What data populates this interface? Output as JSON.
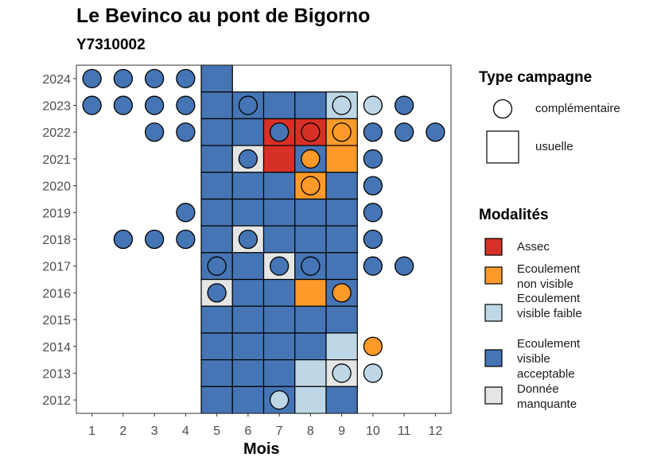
{
  "chart_data": {
    "type": "heatmap",
    "title": "Le Bevinco au pont de Bigorno",
    "subtitle": "Y7310002",
    "xlabel": "Mois",
    "ylabel": "",
    "x_ticks": [
      "1",
      "2",
      "3",
      "4",
      "5",
      "6",
      "7",
      "8",
      "9",
      "10",
      "11",
      "12"
    ],
    "y_ticks": [
      "2012",
      "2013",
      "2014",
      "2015",
      "2016",
      "2017",
      "2018",
      "2019",
      "2020",
      "2021",
      "2022",
      "2023",
      "2024"
    ],
    "legend_shape_title": "Type campagne",
    "legend_shapes": [
      {
        "shape": "circle",
        "label": "complémentaire"
      },
      {
        "shape": "square",
        "label": "usuelle"
      }
    ],
    "legend_fill_title": "Modalités",
    "categories": [
      {
        "key": "A",
        "label": "Assec",
        "color": "#d73027"
      },
      {
        "key": "N",
        "label": "Ecoulement non visible",
        "color": "#fd9a2a"
      },
      {
        "key": "F",
        "label": "Ecoulement visible faible",
        "color": "#bed7e6"
      },
      {
        "key": "V",
        "label": "Ecoulement visible acceptable",
        "color": "#4575b4"
      },
      {
        "key": "M",
        "label": "Donnée manquante",
        "color": "#e5e5e5"
      }
    ],
    "usuelle": [
      {
        "year": 2024,
        "month": 5,
        "value": "V"
      },
      {
        "year": 2023,
        "month": 5,
        "value": "V"
      },
      {
        "year": 2023,
        "month": 6,
        "value": "V"
      },
      {
        "year": 2023,
        "month": 7,
        "value": "V"
      },
      {
        "year": 2023,
        "month": 8,
        "value": "V"
      },
      {
        "year": 2023,
        "month": 9,
        "value": "F"
      },
      {
        "year": 2022,
        "month": 5,
        "value": "V"
      },
      {
        "year": 2022,
        "month": 6,
        "value": "V"
      },
      {
        "year": 2022,
        "month": 7,
        "value": "A"
      },
      {
        "year": 2022,
        "month": 8,
        "value": "A"
      },
      {
        "year": 2022,
        "month": 9,
        "value": "N"
      },
      {
        "year": 2021,
        "month": 5,
        "value": "V"
      },
      {
        "year": 2021,
        "month": 6,
        "value": "M"
      },
      {
        "year": 2021,
        "month": 7,
        "value": "A"
      },
      {
        "year": 2021,
        "month": 8,
        "value": "V"
      },
      {
        "year": 2021,
        "month": 9,
        "value": "N"
      },
      {
        "year": 2020,
        "month": 5,
        "value": "V"
      },
      {
        "year": 2020,
        "month": 6,
        "value": "V"
      },
      {
        "year": 2020,
        "month": 7,
        "value": "V"
      },
      {
        "year": 2020,
        "month": 8,
        "value": "N"
      },
      {
        "year": 2020,
        "month": 9,
        "value": "V"
      },
      {
        "year": 2019,
        "month": 5,
        "value": "V"
      },
      {
        "year": 2019,
        "month": 6,
        "value": "V"
      },
      {
        "year": 2019,
        "month": 7,
        "value": "V"
      },
      {
        "year": 2019,
        "month": 8,
        "value": "V"
      },
      {
        "year": 2019,
        "month": 9,
        "value": "V"
      },
      {
        "year": 2018,
        "month": 5,
        "value": "V"
      },
      {
        "year": 2018,
        "month": 6,
        "value": "M"
      },
      {
        "year": 2018,
        "month": 7,
        "value": "V"
      },
      {
        "year": 2018,
        "month": 8,
        "value": "V"
      },
      {
        "year": 2018,
        "month": 9,
        "value": "V"
      },
      {
        "year": 2017,
        "month": 5,
        "value": "V"
      },
      {
        "year": 2017,
        "month": 6,
        "value": "V"
      },
      {
        "year": 2017,
        "month": 7,
        "value": "M"
      },
      {
        "year": 2017,
        "month": 8,
        "value": "V"
      },
      {
        "year": 2017,
        "month": 9,
        "value": "V"
      },
      {
        "year": 2016,
        "month": 5,
        "value": "M"
      },
      {
        "year": 2016,
        "month": 6,
        "value": "V"
      },
      {
        "year": 2016,
        "month": 7,
        "value": "V"
      },
      {
        "year": 2016,
        "month": 8,
        "value": "N"
      },
      {
        "year": 2016,
        "month": 9,
        "value": "V"
      },
      {
        "year": 2015,
        "month": 5,
        "value": "V"
      },
      {
        "year": 2015,
        "month": 6,
        "value": "V"
      },
      {
        "year": 2015,
        "month": 7,
        "value": "V"
      },
      {
        "year": 2015,
        "month": 8,
        "value": "V"
      },
      {
        "year": 2015,
        "month": 9,
        "value": "V"
      },
      {
        "year": 2014,
        "month": 5,
        "value": "V"
      },
      {
        "year": 2014,
        "month": 6,
        "value": "V"
      },
      {
        "year": 2014,
        "month": 7,
        "value": "V"
      },
      {
        "year": 2014,
        "month": 8,
        "value": "V"
      },
      {
        "year": 2014,
        "month": 9,
        "value": "F"
      },
      {
        "year": 2013,
        "month": 5,
        "value": "V"
      },
      {
        "year": 2013,
        "month": 6,
        "value": "V"
      },
      {
        "year": 2013,
        "month": 7,
        "value": "V"
      },
      {
        "year": 2013,
        "month": 8,
        "value": "F"
      },
      {
        "year": 2013,
        "month": 9,
        "value": "M"
      },
      {
        "year": 2012,
        "month": 5,
        "value": "V"
      },
      {
        "year": 2012,
        "month": 6,
        "value": "V"
      },
      {
        "year": 2012,
        "month": 7,
        "value": "V"
      },
      {
        "year": 2012,
        "month": 8,
        "value": "F"
      },
      {
        "year": 2012,
        "month": 9,
        "value": "V"
      }
    ],
    "complementaire": [
      {
        "year": 2024,
        "month": 1,
        "value": "V"
      },
      {
        "year": 2024,
        "month": 2,
        "value": "V"
      },
      {
        "year": 2024,
        "month": 3,
        "value": "V"
      },
      {
        "year": 2024,
        "month": 4,
        "value": "V"
      },
      {
        "year": 2023,
        "month": 1,
        "value": "V"
      },
      {
        "year": 2023,
        "month": 2,
        "value": "V"
      },
      {
        "year": 2023,
        "month": 3,
        "value": "V"
      },
      {
        "year": 2023,
        "month": 4,
        "value": "V"
      },
      {
        "year": 2023,
        "month": 6,
        "value": "V"
      },
      {
        "year": 2023,
        "month": 9,
        "value": "F"
      },
      {
        "year": 2023,
        "month": 10,
        "value": "F"
      },
      {
        "year": 2023,
        "month": 11,
        "value": "V"
      },
      {
        "year": 2022,
        "month": 3,
        "value": "V"
      },
      {
        "year": 2022,
        "month": 4,
        "value": "V"
      },
      {
        "year": 2022,
        "month": 7,
        "value": "V"
      },
      {
        "year": 2022,
        "month": 8,
        "value": "A"
      },
      {
        "year": 2022,
        "month": 9,
        "value": "N"
      },
      {
        "year": 2022,
        "month": 10,
        "value": "V"
      },
      {
        "year": 2022,
        "month": 11,
        "value": "V"
      },
      {
        "year": 2022,
        "month": 12,
        "value": "V"
      },
      {
        "year": 2021,
        "month": 6,
        "value": "V"
      },
      {
        "year": 2021,
        "month": 8,
        "value": "N"
      },
      {
        "year": 2021,
        "month": 10,
        "value": "V"
      },
      {
        "year": 2020,
        "month": 8,
        "value": "N"
      },
      {
        "year": 2020,
        "month": 10,
        "value": "V"
      },
      {
        "year": 2019,
        "month": 4,
        "value": "V"
      },
      {
        "year": 2019,
        "month": 10,
        "value": "V"
      },
      {
        "year": 2018,
        "month": 2,
        "value": "V"
      },
      {
        "year": 2018,
        "month": 3,
        "value": "V"
      },
      {
        "year": 2018,
        "month": 4,
        "value": "V"
      },
      {
        "year": 2018,
        "month": 6,
        "value": "V"
      },
      {
        "year": 2018,
        "month": 10,
        "value": "V"
      },
      {
        "year": 2017,
        "month": 5,
        "value": "V"
      },
      {
        "year": 2017,
        "month": 7,
        "value": "V"
      },
      {
        "year": 2017,
        "month": 8,
        "value": "V"
      },
      {
        "year": 2017,
        "month": 10,
        "value": "V"
      },
      {
        "year": 2017,
        "month": 11,
        "value": "V"
      },
      {
        "year": 2016,
        "month": 5,
        "value": "V"
      },
      {
        "year": 2016,
        "month": 9,
        "value": "N"
      },
      {
        "year": 2014,
        "month": 10,
        "value": "N"
      },
      {
        "year": 2013,
        "month": 9,
        "value": "F"
      },
      {
        "year": 2013,
        "month": 10,
        "value": "F"
      },
      {
        "year": 2012,
        "month": 7,
        "value": "F"
      }
    ]
  }
}
